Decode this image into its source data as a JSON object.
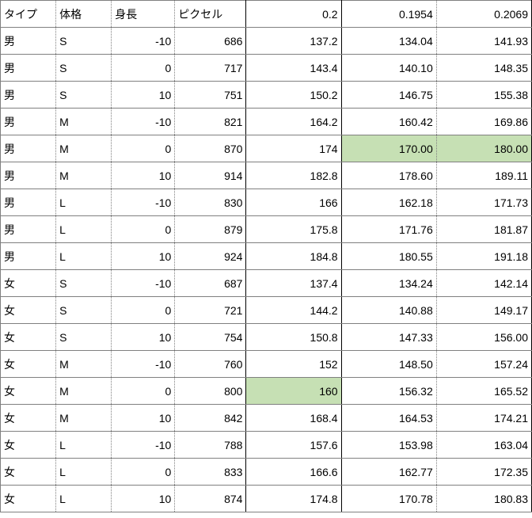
{
  "table": {
    "columns": [
      "タイプ",
      "体格",
      "身長",
      "ピクセル",
      "0.2",
      "0.1954",
      "0.2069"
    ],
    "col_align": [
      "left",
      "left",
      "right",
      "right",
      "right",
      "right",
      "right"
    ],
    "highlight_cells": [
      {
        "row": 4,
        "col": 5
      },
      {
        "row": 4,
        "col": 6
      },
      {
        "row": 13,
        "col": 4
      }
    ],
    "highlight_color": "#c6e0b4",
    "border_color": "#808080",
    "solid_border_color": "#000000",
    "background": "#ffffff",
    "font_size": 14,
    "rows": [
      [
        "男",
        "S",
        "-10",
        "686",
        "137.2",
        "134.04",
        "141.93"
      ],
      [
        "男",
        "S",
        "0",
        "717",
        "143.4",
        "140.10",
        "148.35"
      ],
      [
        "男",
        "S",
        "10",
        "751",
        "150.2",
        "146.75",
        "155.38"
      ],
      [
        "男",
        "M",
        "-10",
        "821",
        "164.2",
        "160.42",
        "169.86"
      ],
      [
        "男",
        "M",
        "0",
        "870",
        "174",
        "170.00",
        "180.00"
      ],
      [
        "男",
        "M",
        "10",
        "914",
        "182.8",
        "178.60",
        "189.11"
      ],
      [
        "男",
        "L",
        "-10",
        "830",
        "166",
        "162.18",
        "171.73"
      ],
      [
        "男",
        "L",
        "0",
        "879",
        "175.8",
        "171.76",
        "181.87"
      ],
      [
        "男",
        "L",
        "10",
        "924",
        "184.8",
        "180.55",
        "191.18"
      ],
      [
        "女",
        "S",
        "-10",
        "687",
        "137.4",
        "134.24",
        "142.14"
      ],
      [
        "女",
        "S",
        "0",
        "721",
        "144.2",
        "140.88",
        "149.17"
      ],
      [
        "女",
        "S",
        "10",
        "754",
        "150.8",
        "147.33",
        "156.00"
      ],
      [
        "女",
        "M",
        "-10",
        "760",
        "152",
        "148.50",
        "157.24"
      ],
      [
        "女",
        "M",
        "0",
        "800",
        "160",
        "156.32",
        "165.52"
      ],
      [
        "女",
        "M",
        "10",
        "842",
        "168.4",
        "164.53",
        "174.21"
      ],
      [
        "女",
        "L",
        "-10",
        "788",
        "157.6",
        "153.98",
        "163.04"
      ],
      [
        "女",
        "L",
        "0",
        "833",
        "166.6",
        "162.77",
        "172.35"
      ],
      [
        "女",
        "L",
        "10",
        "874",
        "174.8",
        "170.78",
        "180.83"
      ]
    ]
  }
}
